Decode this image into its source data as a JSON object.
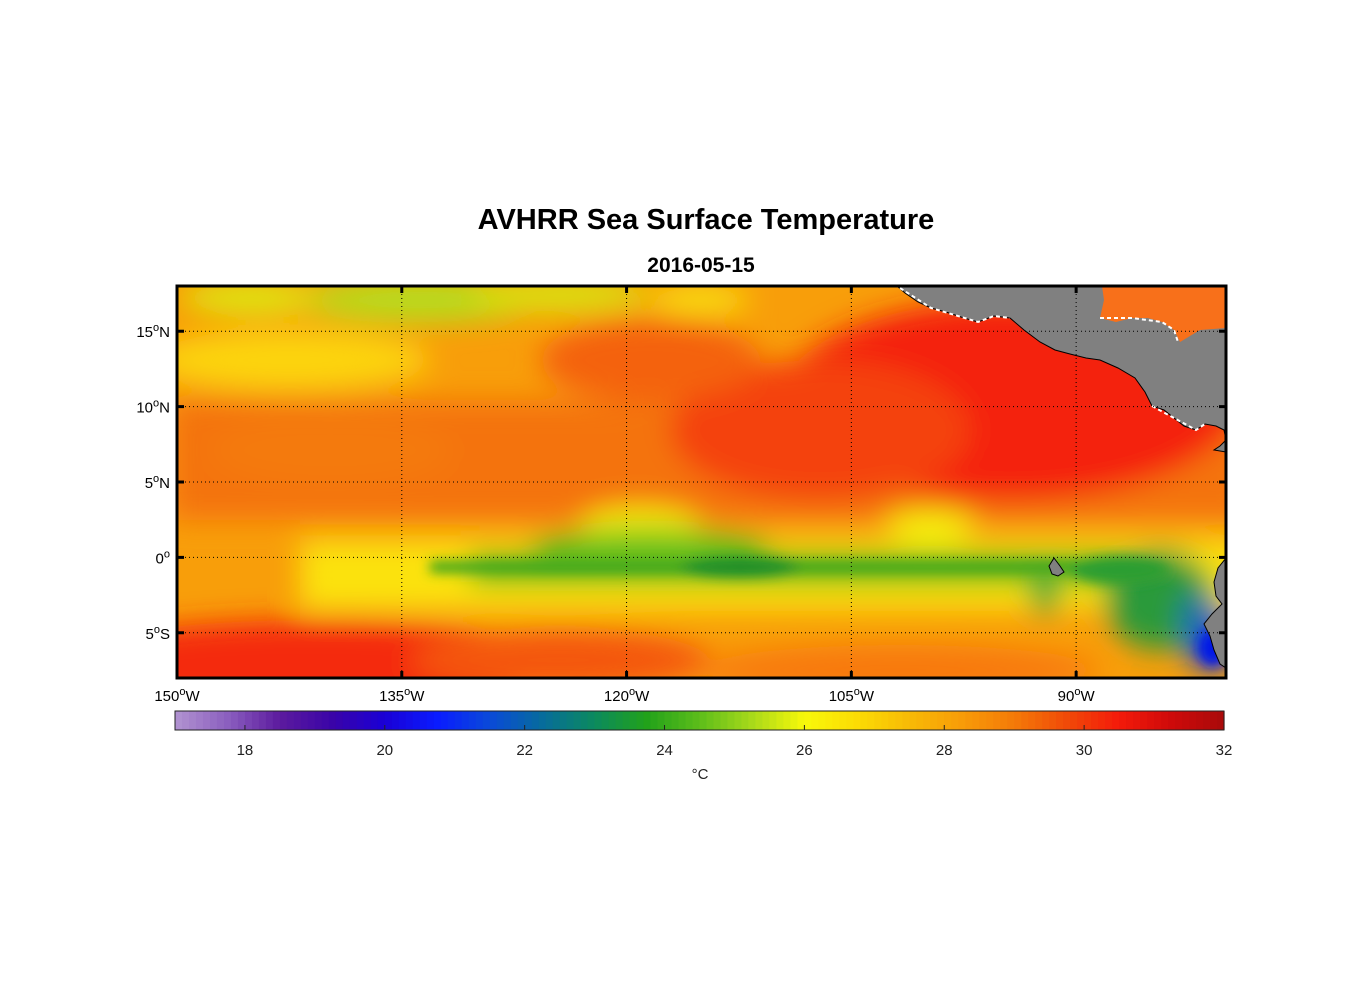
{
  "title": "AVHRR Sea Surface Temperature",
  "subtitle": "2016-05-15",
  "map": {
    "lon_range": [
      -150,
      -80
    ],
    "lat_range": [
      -8,
      18
    ],
    "lat_ticks": [
      {
        "value": 15,
        "num": "15",
        "deg": "o",
        "hem": "N"
      },
      {
        "value": 10,
        "num": "10",
        "deg": "o",
        "hem": "N"
      },
      {
        "value": 5,
        "num": "5",
        "deg": "o",
        "hem": "N"
      },
      {
        "value": 0,
        "num": "0",
        "deg": "o",
        "hem": ""
      },
      {
        "value": -5,
        "num": "5",
        "deg": "o",
        "hem": "S"
      }
    ],
    "lon_ticks": [
      {
        "value": -150,
        "num": "150",
        "deg": "o",
        "hem": "W"
      },
      {
        "value": -135,
        "num": "135",
        "deg": "o",
        "hem": "W"
      },
      {
        "value": -120,
        "num": "120",
        "deg": "o",
        "hem": "W"
      },
      {
        "value": -105,
        "num": "105",
        "deg": "o",
        "hem": "W"
      },
      {
        "value": -90,
        "num": "90",
        "deg": "o",
        "hem": "W"
      }
    ],
    "land_color": "#808080",
    "frame_color": "#000000"
  },
  "colorbar": {
    "min": 17,
    "max": 32,
    "ticks": [
      "18",
      "20",
      "22",
      "24",
      "26",
      "28",
      "30",
      "32"
    ],
    "tick_values": [
      18,
      20,
      22,
      24,
      26,
      28,
      30,
      32
    ],
    "unit": "°C",
    "colors": [
      "#b294d1",
      "#8b5fbf",
      "#5c1a9e",
      "#3a04a8",
      "#1a00d6",
      "#0a1cff",
      "#0a4ad8",
      "#076c9c",
      "#0b8a5e",
      "#22a21a",
      "#5dbd1a",
      "#a8d91a",
      "#f8f80a",
      "#fcdc04",
      "#f8ba06",
      "#f89c08",
      "#f47a08",
      "#f04a08",
      "#f41a0a",
      "#ce0a0a",
      "#a80a0a"
    ]
  }
}
